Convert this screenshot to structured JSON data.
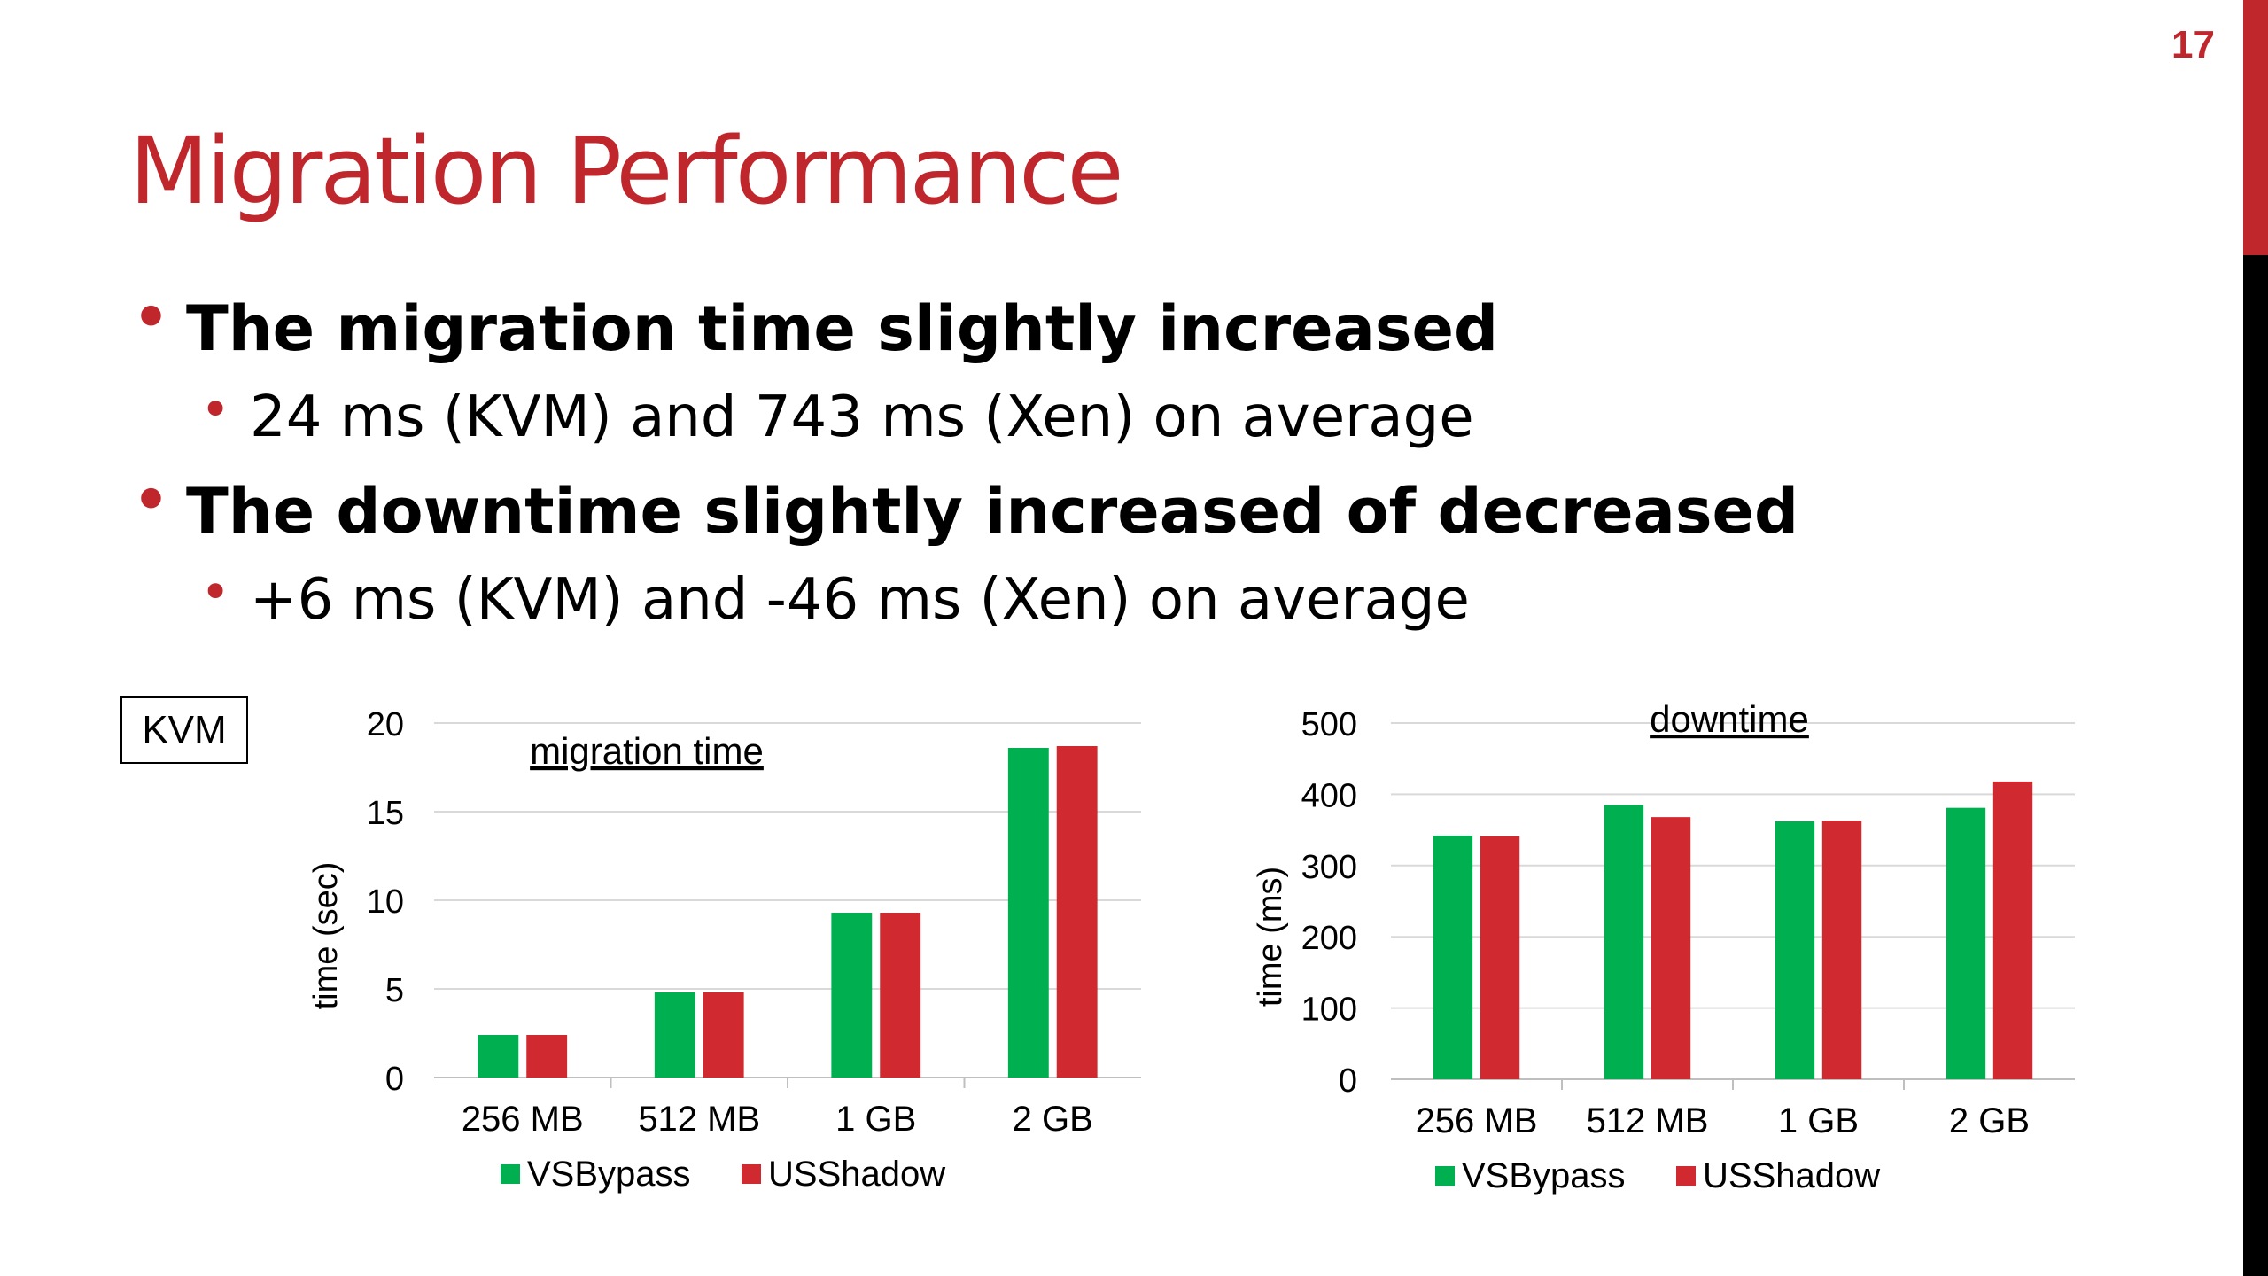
{
  "slide_number": "17",
  "title": "Migration Performance",
  "bullets": [
    {
      "level": 1,
      "text": "The migration time slightly increased"
    },
    {
      "level": 2,
      "text": "24 ms (KVM) and 743 ms (Xen) on average"
    },
    {
      "level": 1,
      "text": "The downtime slightly increased of decreased"
    },
    {
      "level": 2,
      "text": "+6 ms (KVM) and -46 ms (Xen) on average"
    }
  ],
  "kvm_label": "KVM",
  "colors": {
    "accent": "#c0272d",
    "vsbypass": "#00b050",
    "usshadow": "#d02a30"
  },
  "chart_data": [
    {
      "type": "bar",
      "title": "migration time",
      "xlabel": "",
      "ylabel": "time (sec)",
      "categories": [
        "256 MB",
        "512 MB",
        "1 GB",
        "2 GB"
      ],
      "ylim": [
        0,
        20
      ],
      "yticks": [
        "0",
        "5",
        "10",
        "15",
        "20"
      ],
      "grid": true,
      "legend": "bottom",
      "series": [
        {
          "name": "VSBypass",
          "values": [
            2.4,
            4.8,
            9.3,
            18.6
          ]
        },
        {
          "name": "USShadow",
          "values": [
            2.4,
            4.8,
            9.3,
            18.7
          ]
        }
      ]
    },
    {
      "type": "bar",
      "title": "downtime",
      "xlabel": "",
      "ylabel": "time (ms)",
      "categories": [
        "256 MB",
        "512 MB",
        "1 GB",
        "2 GB"
      ],
      "ylim": [
        0,
        500
      ],
      "yticks": [
        "0",
        "100",
        "200",
        "300",
        "400",
        "500"
      ],
      "grid": true,
      "legend": "bottom",
      "series": [
        {
          "name": "VSBypass",
          "values": [
            342,
            385,
            362,
            381
          ]
        },
        {
          "name": "USShadow",
          "values": [
            341,
            368,
            363,
            418
          ]
        }
      ]
    }
  ]
}
